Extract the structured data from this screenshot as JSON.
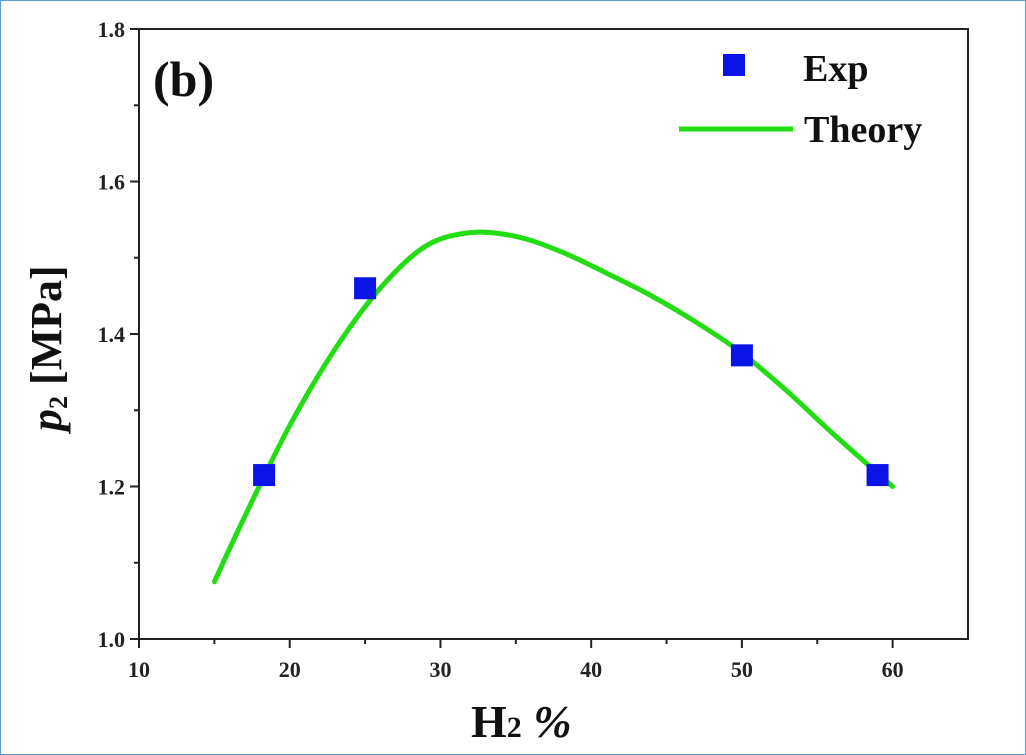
{
  "chart_data": {
    "type": "scatter",
    "panel_label": "(b)",
    "xlabel_main": "H",
    "xlabel_sub": "2",
    "xlabel_suffix": " %",
    "ylabel_main": "p",
    "ylabel_sub": "2",
    "ylabel_unit": " [MPa]",
    "xlim": [
      10,
      65
    ],
    "ylim": [
      1.0,
      1.8
    ],
    "x_ticks": [
      10,
      20,
      30,
      40,
      50,
      60
    ],
    "y_ticks": [
      "1.0",
      "1.2",
      "1.4",
      "1.6",
      "1.8"
    ],
    "legend_position": "top-right",
    "series": [
      {
        "name": "Exp",
        "kind": "scatter",
        "marker": "square",
        "color": "#0a14e6",
        "x": [
          18.3,
          25,
          50,
          59
        ],
        "y": [
          1.215,
          1.46,
          1.372,
          1.215
        ]
      },
      {
        "name": "Theory",
        "kind": "line",
        "color": "#22dd11",
        "x": [
          15,
          17,
          20,
          23,
          26,
          29,
          32,
          35,
          38,
          41,
          44,
          47,
          50,
          53,
          56,
          60
        ],
        "y": [
          1.075,
          1.16,
          1.28,
          1.38,
          1.46,
          1.515,
          1.533,
          1.528,
          1.508,
          1.48,
          1.45,
          1.415,
          1.375,
          1.325,
          1.27,
          1.2
        ]
      }
    ]
  }
}
